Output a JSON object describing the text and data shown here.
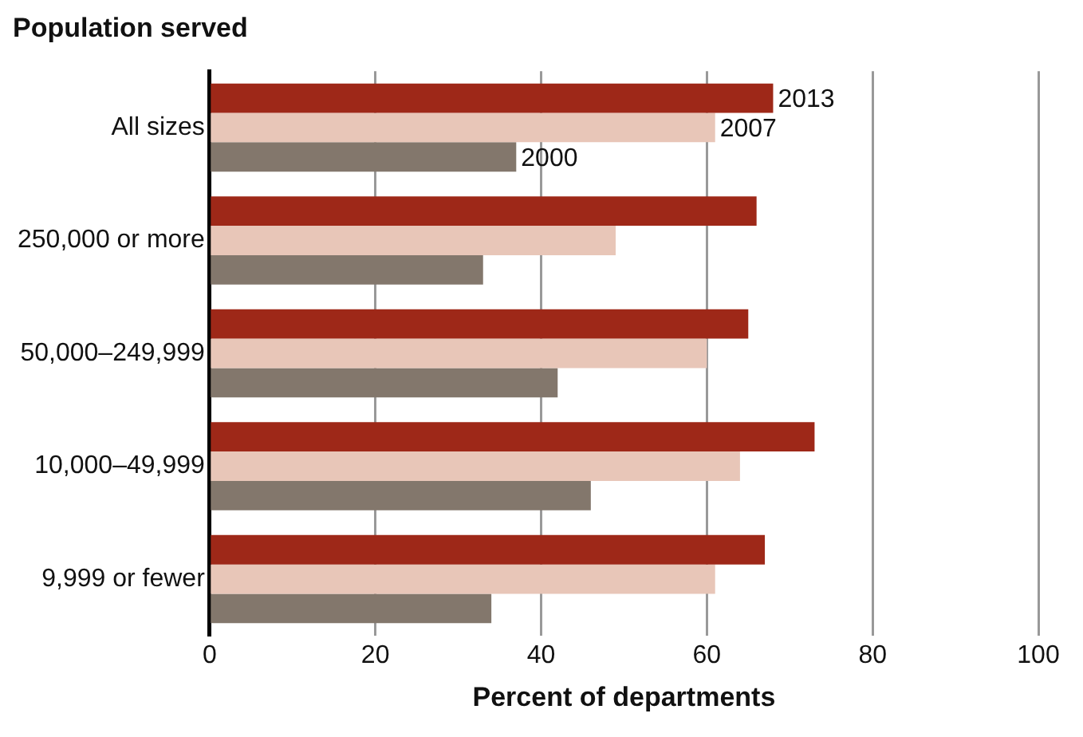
{
  "chart_data": {
    "type": "bar",
    "orientation": "horizontal",
    "ylabel": "Population served",
    "xlabel": "Percent of departments",
    "categories": [
      "All sizes",
      "250,000 or more",
      "50,000–249,999",
      "10,000–49,999",
      "9,999 or fewer"
    ],
    "series": [
      {
        "name": "2013",
        "color": "#9e2818",
        "values": [
          68,
          66,
          65,
          73,
          67
        ]
      },
      {
        "name": "2007",
        "color": "#e8c6b8",
        "values": [
          61,
          49,
          60,
          64,
          61
        ]
      },
      {
        "name": "2000",
        "color": "#83776c",
        "values": [
          37,
          33,
          42,
          46,
          34
        ]
      }
    ],
    "xlim": [
      0,
      100
    ],
    "xticks": [
      0,
      20,
      40,
      60,
      80,
      100
    ],
    "grid": "x",
    "legend": false
  }
}
